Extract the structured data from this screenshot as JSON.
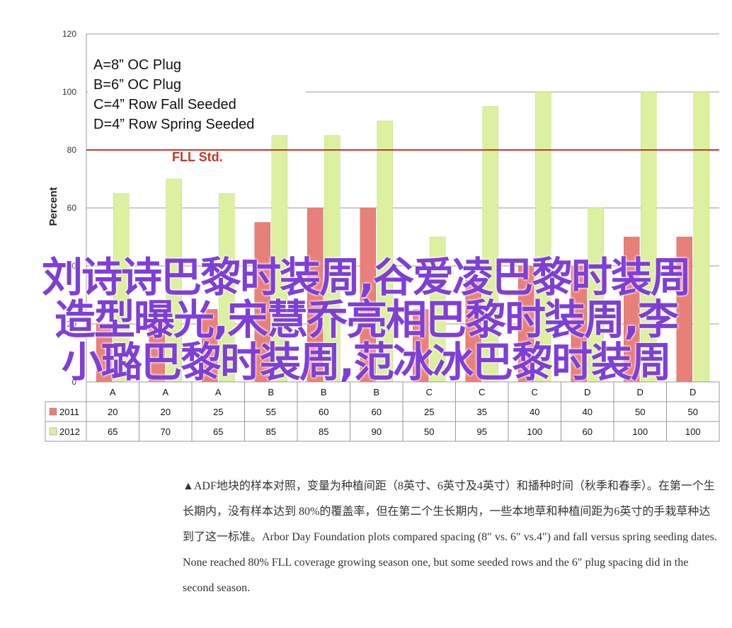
{
  "chart_data": {
    "type": "bar",
    "categories": [
      "A",
      "A",
      "A",
      "B",
      "B",
      "B",
      "C",
      "C",
      "C",
      "D",
      "D",
      "D"
    ],
    "series": [
      {
        "name": "2011",
        "values": [
          20,
          20,
          25,
          55,
          60,
          60,
          25,
          35,
          40,
          40,
          50,
          50
        ],
        "color": "#e8807a"
      },
      {
        "name": "2012",
        "values": [
          65,
          70,
          65,
          85,
          85,
          90,
          50,
          95,
          100,
          60,
          100,
          100
        ],
        "color": "#dcf0a0"
      }
    ],
    "ylabel": "Percent",
    "ylim": [
      0,
      120
    ],
    "yticks": [
      0,
      20,
      40,
      60,
      80,
      100,
      120
    ],
    "reference_line": {
      "value": 80,
      "label": "FLL Std.",
      "color": "#c0392b"
    },
    "legend_text": [
      "A=8” OC Plug",
      "B=6” OC Plug",
      "C=4” Row Fall Seeded",
      "D=4” Row Spring Seeded"
    ],
    "grid": true,
    "data_table": true
  },
  "overlay": {
    "line1": "刘诗诗巴黎时装周,谷爱凌巴黎时装周",
    "line2": "造型曝光,宋慧乔亮相巴黎时装周,李",
    "line3": "小璐巴黎时装周,范冰冰巴黎时装周",
    "color": "#7e3fd6"
  },
  "caption": {
    "text": "▲ADF地块的样本对照，变量为种植间距（8英寸、6英寸及4英寸）和播种时间（秋季和春季）。在第一个生长期内，没有样本达到 80%的覆盖率，但在第二个生长期内，一些本地草和种植间距为6英寸的手栽草种达到了这一标准。Arbor Day Foundation plots compared spacing (8″ vs. 6″ vs.4″) and fall versus spring seeding dates. None reached 80% FLL coverage growing season one, but some seeded rows and the 6″ plug spacing did in the second season."
  }
}
